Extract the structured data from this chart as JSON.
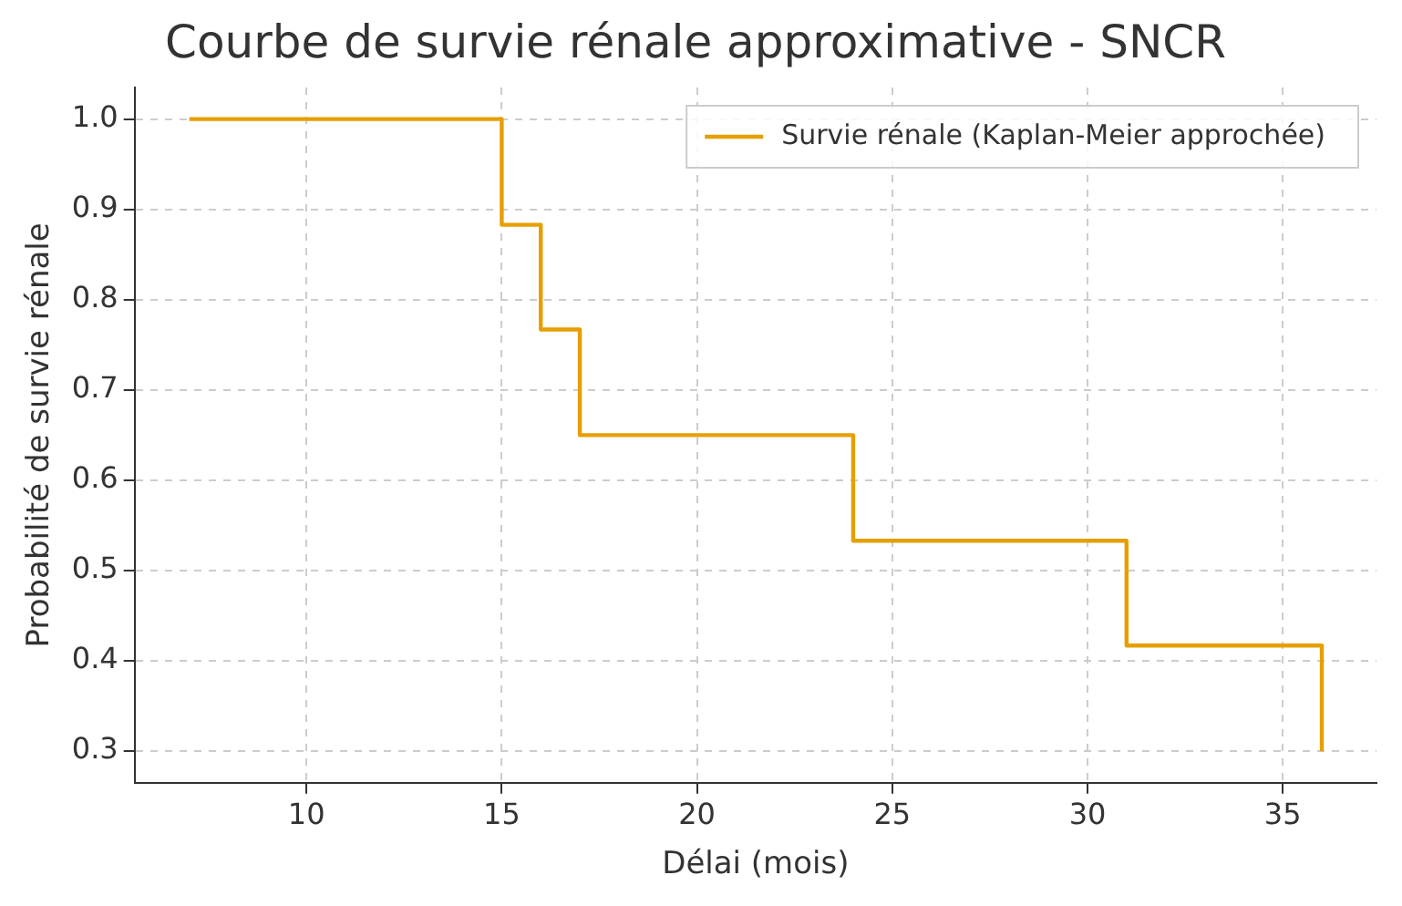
{
  "chart_data": {
    "type": "step",
    "title": "Courbe de survie rénale approximative - SNCR",
    "xlabel": "Délai (mois)",
    "ylabel": "Probabilité de survie rénale",
    "x": [
      7,
      15,
      16,
      17,
      24,
      31,
      36
    ],
    "series": [
      {
        "name": "Survie rénale (Kaplan-Meier approchée)",
        "color": "#e69f00",
        "values": [
          1.0,
          0.883,
          0.767,
          0.65,
          0.533,
          0.417,
          0.3
        ]
      }
    ],
    "xlim": [
      5.6,
      37.4
    ],
    "xticks": [
      10,
      15,
      20,
      25,
      30,
      35
    ],
    "ylim": [
      0.265,
      1.035
    ],
    "yticks": [
      {
        "value": 0.3,
        "label": "0.3"
      },
      {
        "value": 0.4,
        "label": "0.4"
      },
      {
        "value": 0.5,
        "label": "0.5"
      },
      {
        "value": 0.6,
        "label": "0.6"
      },
      {
        "value": 0.7,
        "label": "0.7"
      },
      {
        "value": 0.8,
        "label": "0.8"
      },
      {
        "value": 0.9,
        "label": "0.9"
      },
      {
        "value": 1.0,
        "label": "1.0"
      }
    ],
    "grid": true,
    "legend": "top right",
    "marker": "none",
    "line_style": "solid"
  }
}
